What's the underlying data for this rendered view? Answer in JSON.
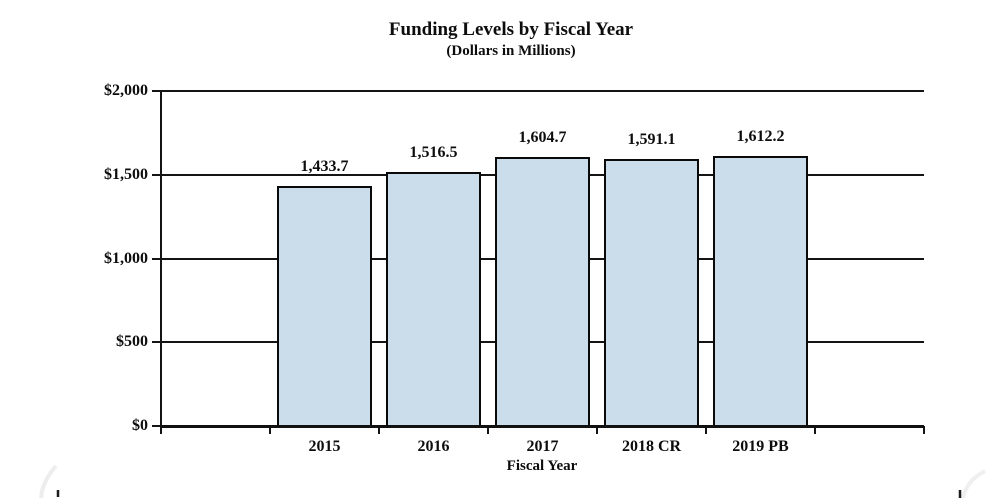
{
  "chart_data": {
    "type": "bar",
    "title": "Funding Levels by Fiscal Year",
    "subtitle": "(Dollars in Millions)",
    "xlabel": "Fiscal Year",
    "ylabel": "",
    "categories": [
      "2015",
      "2016",
      "2017",
      "2018 CR",
      "2019 PB"
    ],
    "values": [
      1433.7,
      1516.5,
      1604.7,
      1591.1,
      1612.2
    ],
    "value_labels": [
      "1,433.7",
      "1,516.5",
      "1,604.7",
      "1,591.1",
      "1,612.2"
    ],
    "ylim": [
      0,
      2000
    ],
    "yticks": [
      0,
      500,
      1000,
      1500,
      2000
    ],
    "ytick_labels": [
      "$0",
      "$500",
      "$1,000",
      "$1,500",
      "$2,000"
    ],
    "grid": true,
    "legend": false,
    "layout_hints": {
      "gridline_color": "#141414",
      "axis_color": "#111111",
      "bar_fill": "#cbddeb",
      "bar_border": "#0a0a0a",
      "text_color": "#0d0d0d",
      "background": "#ffffff"
    }
  }
}
